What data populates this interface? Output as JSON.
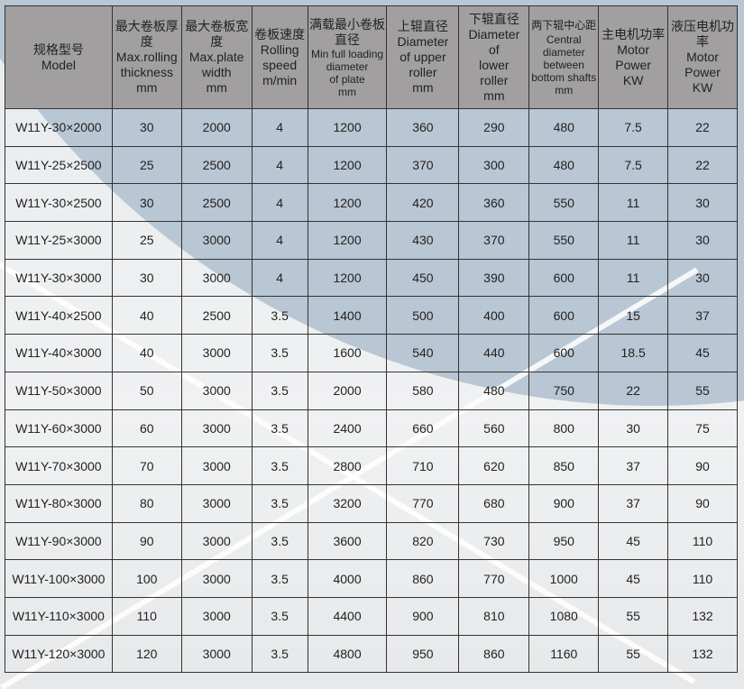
{
  "table": {
    "headers": [
      {
        "zh": "规格型号",
        "en": [
          "Model"
        ]
      },
      {
        "zh": "最大卷板厚度",
        "en": [
          "Max.rolling",
          "thickness",
          "mm"
        ]
      },
      {
        "zh": "最大卷板宽度",
        "en": [
          "Max.plate",
          "width",
          "mm"
        ]
      },
      {
        "zh": "卷板速度",
        "en": [
          "Rolling",
          "speed",
          "m/min"
        ]
      },
      {
        "zh": "满载最小卷板直径",
        "en": [
          "Min full loading",
          "diameter",
          "of plate",
          "mm"
        ]
      },
      {
        "zh": "上辊直径",
        "en": [
          "Diameter",
          "of upper",
          "roller",
          "mm"
        ]
      },
      {
        "zh": "下辊直径",
        "en": [
          "Diameter",
          "of",
          "lower",
          "roller",
          "mm"
        ]
      },
      {
        "zh": "两下辊中心距",
        "en": [
          "Central",
          "diameter",
          "between",
          "bottom shafts",
          "mm"
        ]
      },
      {
        "zh": "主电机功率",
        "en": [
          "Motor",
          "Power",
          "KW"
        ]
      },
      {
        "zh": "液压电机功率",
        "en": [
          "Motor",
          "Power",
          "KW"
        ]
      }
    ],
    "rows": [
      [
        "W11Y-30×2000",
        "30",
        "2000",
        "4",
        "1200",
        "360",
        "290",
        "480",
        "7.5",
        "22"
      ],
      [
        "W11Y-25×2500",
        "25",
        "2500",
        "4",
        "1200",
        "370",
        "300",
        "480",
        "7.5",
        "22"
      ],
      [
        "W11Y-30×2500",
        "30",
        "2500",
        "4",
        "1200",
        "420",
        "360",
        "550",
        "11",
        "30"
      ],
      [
        "W11Y-25×3000",
        "25",
        "3000",
        "4",
        "1200",
        "430",
        "370",
        "550",
        "11",
        "30"
      ],
      [
        "W11Y-30×3000",
        "30",
        "3000",
        "4",
        "1200",
        "450",
        "390",
        "600",
        "11",
        "30"
      ],
      [
        "W11Y-40×2500",
        "40",
        "2500",
        "3.5",
        "1400",
        "500",
        "400",
        "600",
        "15",
        "37"
      ],
      [
        "W11Y-40×3000",
        "40",
        "3000",
        "3.5",
        "1600",
        "540",
        "440",
        "600",
        "18.5",
        "45"
      ],
      [
        "W11Y-50×3000",
        "50",
        "3000",
        "3.5",
        "2000",
        "580",
        "480",
        "750",
        "22",
        "55"
      ],
      [
        "W11Y-60×3000",
        "60",
        "3000",
        "3.5",
        "2400",
        "660",
        "560",
        "800",
        "30",
        "75"
      ],
      [
        "W11Y-70×3000",
        "70",
        "3000",
        "3.5",
        "2800",
        "710",
        "620",
        "850",
        "37",
        "90"
      ],
      [
        "W11Y-80×3000",
        "80",
        "3000",
        "3.5",
        "3200",
        "770",
        "680",
        "900",
        "37",
        "90"
      ],
      [
        "W11Y-90×3000",
        "90",
        "3000",
        "3.5",
        "3600",
        "820",
        "730",
        "950",
        "45",
        "110"
      ],
      [
        "W11Y-100×3000",
        "100",
        "3000",
        "3.5",
        "4000",
        "860",
        "770",
        "1000",
        "45",
        "110"
      ],
      [
        "W11Y-110×3000",
        "110",
        "3000",
        "3.5",
        "4400",
        "900",
        "810",
        "1080",
        "55",
        "132"
      ],
      [
        "W11Y-120×3000",
        "120",
        "3000",
        "3.5",
        "4800",
        "950",
        "860",
        "1160",
        "55",
        "132"
      ]
    ]
  },
  "colors": {
    "header_bg": "#a19fa0",
    "background_curve": "#b9c6d3",
    "border": "#333333"
  }
}
